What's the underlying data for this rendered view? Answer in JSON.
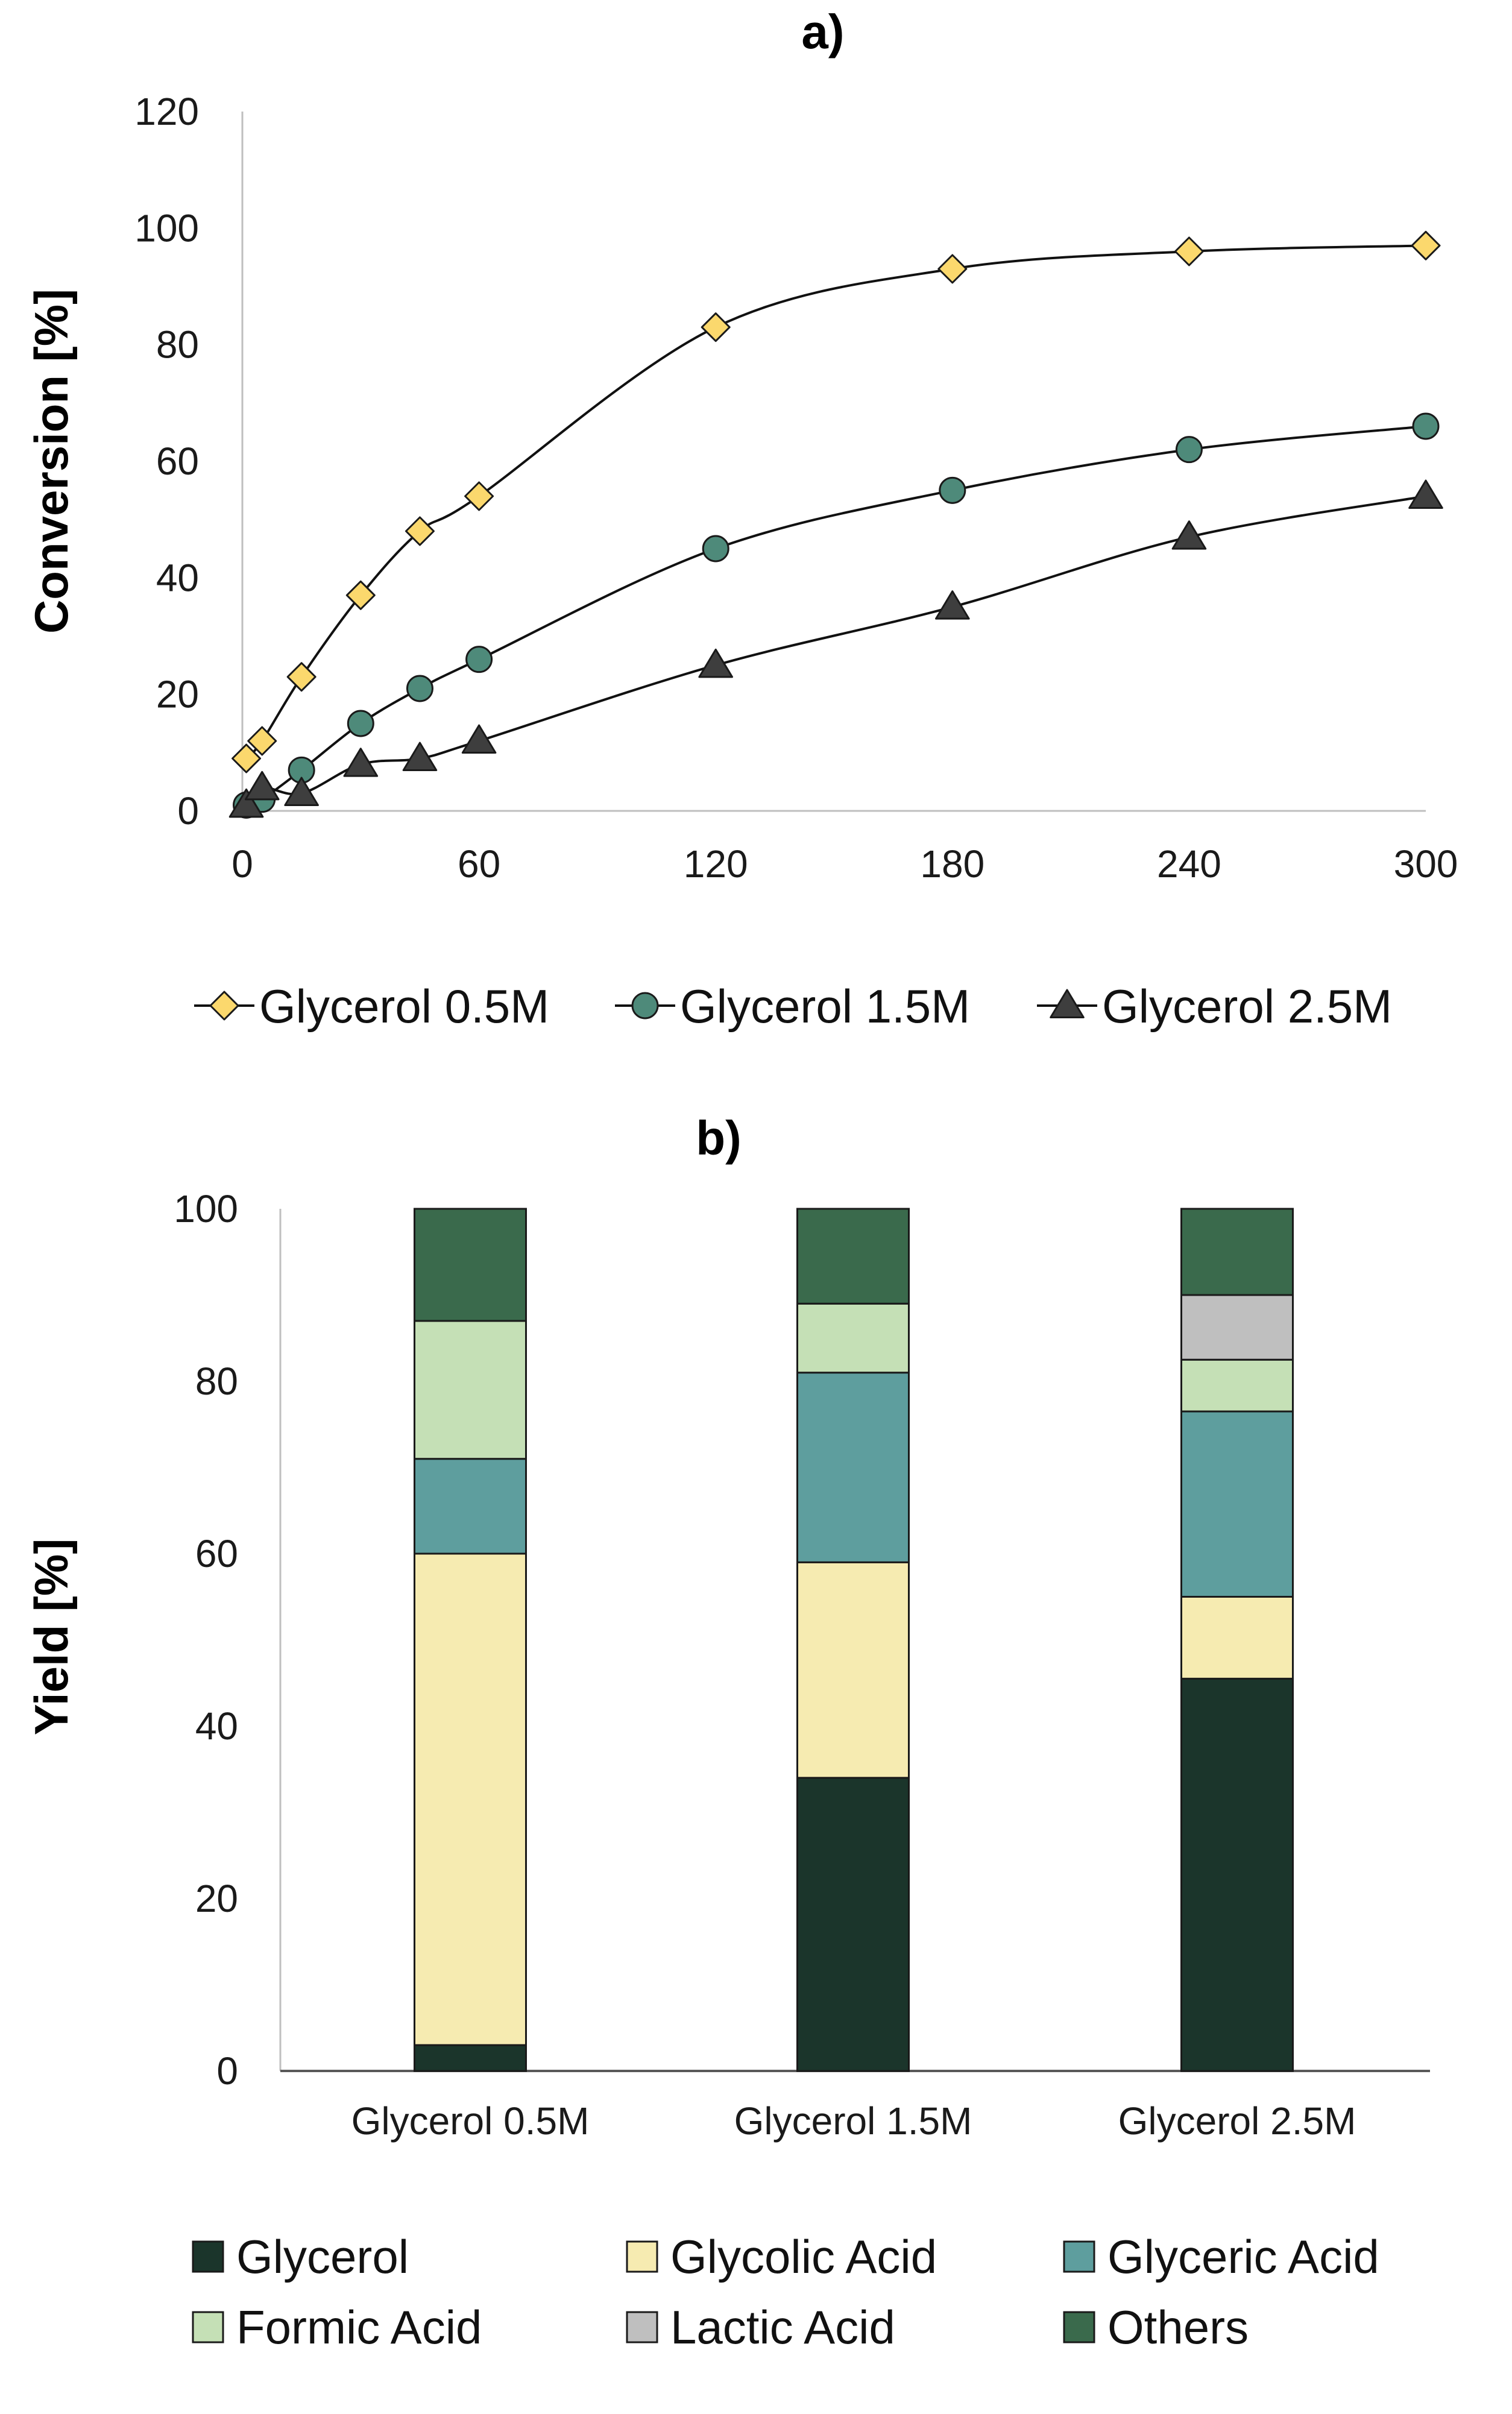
{
  "chart_data": [
    {
      "panel": "a)",
      "type": "line",
      "title": "a)",
      "xlabel": "",
      "ylabel": "Conversion [%]",
      "xlim": [
        0,
        300
      ],
      "ylim": [
        0,
        120
      ],
      "xticks": [
        0,
        60,
        120,
        180,
        240,
        300
      ],
      "yticks": [
        0,
        20,
        40,
        60,
        80,
        100,
        120
      ],
      "grid": false,
      "legend": "bottom",
      "series": [
        {
          "name": "Glycerol 0.5M",
          "marker": "diamond",
          "color": "#FBD86D",
          "x": [
            1,
            5,
            15,
            30,
            45,
            60,
            120,
            180,
            240,
            300
          ],
          "y": [
            9,
            12,
            23,
            37,
            48,
            54,
            83,
            93,
            96,
            97
          ]
        },
        {
          "name": "Glycerol 1.5M",
          "marker": "circle",
          "color": "#4E8A7A",
          "x": [
            1,
            5,
            15,
            30,
            45,
            60,
            120,
            180,
            240,
            300
          ],
          "y": [
            1,
            2,
            7,
            15,
            21,
            26,
            45,
            55,
            62,
            66
          ]
        },
        {
          "name": "Glycerol 2.5M",
          "marker": "triangle",
          "color": "#3E3E3E",
          "x": [
            1,
            5,
            15,
            30,
            45,
            60,
            120,
            180,
            240,
            300
          ],
          "y": [
            1,
            4,
            3,
            8,
            9,
            12,
            25,
            35,
            47,
            54
          ]
        }
      ]
    },
    {
      "panel": "b)",
      "type": "bar",
      "stacked": true,
      "title": "b)",
      "xlabel": "",
      "ylabel": "Yield [%]",
      "ylim": [
        0,
        100
      ],
      "yticks": [
        0,
        20,
        40,
        60,
        80,
        100
      ],
      "grid": false,
      "legend": "bottom",
      "categories": [
        "Glycerol 0.5M",
        "Glycerol 1.5M",
        "Glycerol 2.5M"
      ],
      "series": [
        {
          "name": "Glycerol",
          "color": "#1B352B",
          "values": [
            3,
            34,
            45.5
          ]
        },
        {
          "name": "Glycolic Acid",
          "color": "#F6EBB1",
          "values": [
            57,
            25,
            9.5
          ]
        },
        {
          "name": "Glyceric Acid",
          "color": "#5E9E9E",
          "values": [
            11,
            22,
            21.5
          ]
        },
        {
          "name": "Formic Acid",
          "color": "#C5E0B6",
          "values": [
            16,
            8,
            6
          ]
        },
        {
          "name": "Lactic Acid",
          "color": "#BFBFBF",
          "values": [
            0,
            0,
            7.5
          ]
        },
        {
          "name": "Others",
          "color": "#3A6A4C",
          "values": [
            13,
            11,
            10
          ]
        }
      ]
    }
  ]
}
